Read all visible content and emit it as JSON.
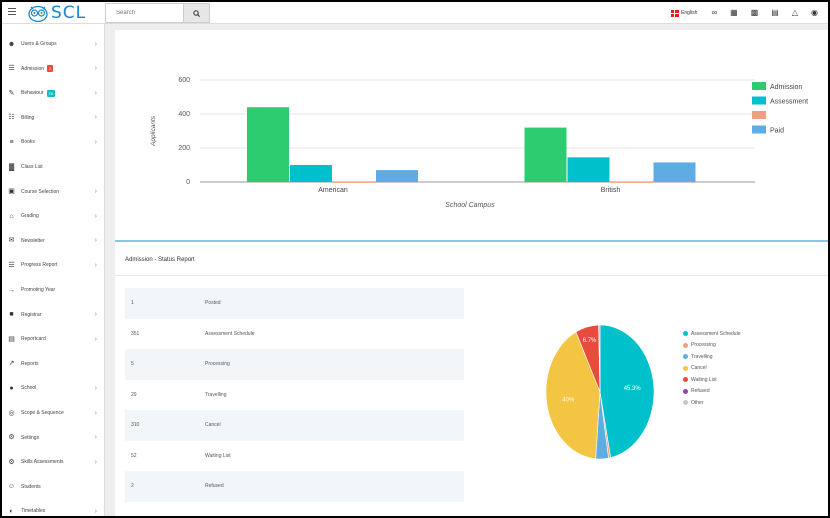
{
  "header": {
    "logo_text": "SCL",
    "search": {
      "placeholder": "Search"
    },
    "language": "English"
  },
  "sidebar": {
    "items": [
      {
        "label": "Users & Groups",
        "icon": "users-icon",
        "chevron": true
      },
      {
        "label": "Admission",
        "icon": "admission-icon",
        "chevron": true,
        "badge": "2",
        "badge_color": "#e74c3c"
      },
      {
        "label": "Behaviour",
        "icon": "behaviour-icon",
        "chevron": true,
        "badge": "76",
        "badge_color": "#1cb6c8"
      },
      {
        "label": "Billing",
        "icon": "billing-icon",
        "chevron": true
      },
      {
        "label": "Books",
        "icon": "books-icon",
        "chevron": true
      },
      {
        "label": "Class List",
        "icon": "class-list-icon",
        "chevron": false
      },
      {
        "label": "Course Selection",
        "icon": "course-selection-icon",
        "chevron": true
      },
      {
        "label": "Grading",
        "icon": "grading-icon",
        "chevron": true
      },
      {
        "label": "Newsletter",
        "icon": "newsletter-icon",
        "chevron": true
      },
      {
        "label": "Progress Report",
        "icon": "progress-report-icon",
        "chevron": true
      },
      {
        "label": "Promoting Year",
        "icon": "promoting-year-icon",
        "chevron": false
      },
      {
        "label": "Registrar",
        "icon": "registrar-icon",
        "chevron": true
      },
      {
        "label": "Reportcard",
        "icon": "reportcard-icon",
        "chevron": true
      },
      {
        "label": "Reports",
        "icon": "reports-icon",
        "chevron": false
      },
      {
        "label": "School",
        "icon": "school-icon",
        "chevron": true
      },
      {
        "label": "Scope & Sequence",
        "icon": "scope-sequence-icon",
        "chevron": true
      },
      {
        "label": "Settings",
        "icon": "settings-icon",
        "chevron": true
      },
      {
        "label": "Skills Assessments",
        "icon": "skills-assessments-icon",
        "chevron": true
      },
      {
        "label": "Students",
        "icon": "students-icon",
        "chevron": false
      },
      {
        "label": "Timetables",
        "icon": "timetables-icon",
        "chevron": true
      }
    ]
  },
  "bar_chart": {
    "ylabel": "Applicants",
    "xlabel": "School Campus",
    "categories": [
      "American",
      "British"
    ],
    "ylim": [
      0,
      600
    ],
    "yticks": [
      "0",
      "200",
      "400",
      "600"
    ],
    "series": [
      {
        "name": "Admission",
        "color": "#2ecc71",
        "values": [
          440,
          320
        ]
      },
      {
        "name": "Assessment",
        "color": "#00c0cc",
        "values": [
          100,
          145
        ]
      },
      {
        "name": "",
        "color": "#f0a080",
        "values": [
          0,
          0
        ]
      },
      {
        "name": "Paid",
        "color": "#5dade2",
        "values": [
          70,
          115
        ]
      }
    ]
  },
  "report": {
    "title": "Admission - Status Report",
    "rows": [
      {
        "count": "1",
        "status": "Posted"
      },
      {
        "count": "351",
        "status": "Assessment Schedule"
      },
      {
        "count": "5",
        "status": "Processing"
      },
      {
        "count": "29",
        "status": "Travelling"
      },
      {
        "count": "310",
        "status": "Cancel"
      },
      {
        "count": "52",
        "status": "Waiting List"
      },
      {
        "count": "2",
        "status": "Refused"
      }
    ]
  },
  "chart_data": [
    {
      "type": "bar",
      "categories": [
        "American",
        "British"
      ],
      "series": [
        {
          "name": "Admission",
          "values": [
            440,
            320
          ]
        },
        {
          "name": "Assessment",
          "values": [
            100,
            145
          ]
        },
        {
          "name": "",
          "values": [
            0,
            0
          ]
        },
        {
          "name": "Paid",
          "values": [
            70,
            115
          ]
        }
      ],
      "xlabel": "School Campus",
      "ylabel": "Applicants",
      "ylim": [
        0,
        600
      ],
      "grid": true,
      "legend": "right"
    },
    {
      "type": "pie",
      "slices": [
        {
          "label": "Assessment Schedule",
          "value": 45.3,
          "color": "#00c0cc",
          "display": "45.3%"
        },
        {
          "label": "Processing",
          "value": 0.6,
          "color": "#f0a080",
          "display": ""
        },
        {
          "label": "Travelling",
          "value": 3.7,
          "color": "#5dade2",
          "display": ""
        },
        {
          "label": "Cancel",
          "value": 40,
          "color": "#f4c542",
          "display": "40%"
        },
        {
          "label": "Waiting List",
          "value": 6.7,
          "color": "#e74c3c",
          "display": "6.7%"
        },
        {
          "label": "Refused",
          "value": 0.3,
          "color": "#8e44ad",
          "display": ""
        },
        {
          "label": "Other",
          "value": 0.1,
          "color": "#c8c8c8",
          "display": ""
        }
      ],
      "legend": "right"
    }
  ]
}
